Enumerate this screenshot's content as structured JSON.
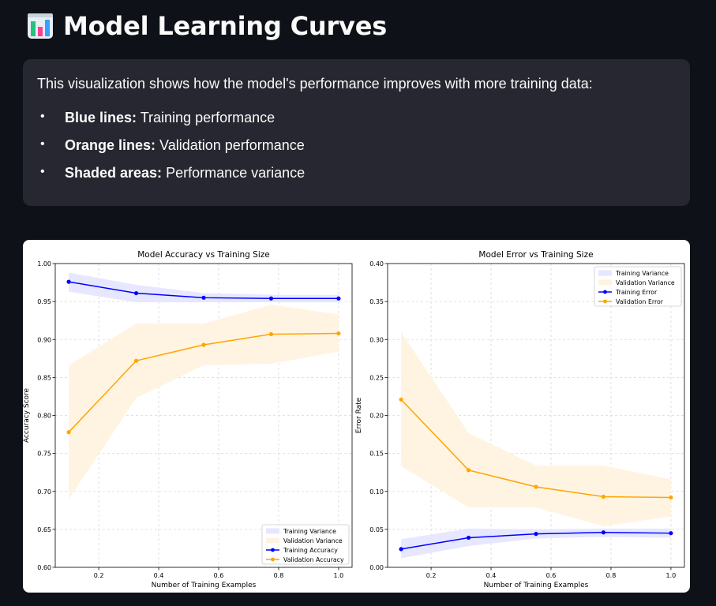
{
  "header": {
    "title": "Model Learning Curves",
    "icon": "bar-chart-icon"
  },
  "info": {
    "intro": "This visualization shows how the model's performance improves with more training data:",
    "items": [
      {
        "term": "Blue lines:",
        "desc": " Training performance"
      },
      {
        "term": "Orange lines:",
        "desc": " Validation performance"
      },
      {
        "term": "Shaded areas:",
        "desc": " Performance variance"
      }
    ]
  },
  "colors": {
    "training": "#0000ff",
    "validation": "#ffa500",
    "training_band": "#e6e6ff",
    "validation_band": "#fff3e0"
  },
  "chart_data": [
    {
      "type": "line",
      "title": "Model Accuracy vs Training Size",
      "xlabel": "Number of Training Examples",
      "ylabel": "Accuracy Score",
      "xlim": [
        0.055,
        1.045
      ],
      "ylim": [
        0.6,
        1.0
      ],
      "xticks": [
        0.2,
        0.4,
        0.6,
        0.8,
        1.0
      ],
      "xtick_labels": [
        "0.2",
        "0.4",
        "0.6",
        "0.8",
        "1.0"
      ],
      "yticks": [
        0.6,
        0.65,
        0.7,
        0.75,
        0.8,
        0.85,
        0.9,
        0.95,
        1.0
      ],
      "ytick_labels": [
        "0.60",
        "0.65",
        "0.70",
        "0.75",
        "0.80",
        "0.85",
        "0.90",
        "0.95",
        "1.00"
      ],
      "grid": true,
      "legend_position": "lower-right",
      "x": [
        0.1,
        0.325,
        0.55,
        0.775,
        1.0
      ],
      "series": [
        {
          "name": "Training Accuracy",
          "values": [
            0.976,
            0.961,
            0.955,
            0.954,
            0.954
          ],
          "color": "training"
        },
        {
          "name": "Validation Accuracy",
          "values": [
            0.778,
            0.872,
            0.893,
            0.907,
            0.908
          ],
          "color": "validation"
        }
      ],
      "bands": [
        {
          "name": "Training Variance",
          "lower": [
            0.963,
            0.949,
            0.949,
            0.949,
            0.949
          ],
          "upper": [
            0.988,
            0.972,
            0.961,
            0.959,
            0.959
          ],
          "color": "training_band"
        },
        {
          "name": "Validation Variance",
          "lower": [
            0.69,
            0.823,
            0.866,
            0.868,
            0.884
          ],
          "upper": [
            0.866,
            0.921,
            0.921,
            0.946,
            0.933
          ],
          "color": "validation_band"
        }
      ],
      "legend": [
        "Training Variance",
        "Validation Variance",
        "Training Accuracy",
        "Validation Accuracy"
      ]
    },
    {
      "type": "line",
      "title": "Model Error vs Training Size",
      "xlabel": "Number of Training Examples",
      "ylabel": "Error Rate",
      "xlim": [
        0.055,
        1.045
      ],
      "ylim": [
        0.0,
        0.4
      ],
      "xticks": [
        0.2,
        0.4,
        0.6,
        0.8,
        1.0
      ],
      "xtick_labels": [
        "0.2",
        "0.4",
        "0.6",
        "0.8",
        "1.0"
      ],
      "yticks": [
        0.0,
        0.05,
        0.1,
        0.15,
        0.2,
        0.25,
        0.3,
        0.35,
        0.4
      ],
      "ytick_labels": [
        "0.00",
        "0.05",
        "0.10",
        "0.15",
        "0.20",
        "0.25",
        "0.30",
        "0.35",
        "0.40"
      ],
      "grid": true,
      "legend_position": "upper-right",
      "x": [
        0.1,
        0.325,
        0.55,
        0.775,
        1.0
      ],
      "series": [
        {
          "name": "Training Error",
          "values": [
            0.024,
            0.039,
            0.044,
            0.046,
            0.045
          ],
          "color": "training"
        },
        {
          "name": "Validation Error",
          "values": [
            0.221,
            0.128,
            0.106,
            0.093,
            0.092
          ],
          "color": "validation"
        }
      ],
      "bands": [
        {
          "name": "Training Variance",
          "lower": [
            0.012,
            0.028,
            0.038,
            0.04,
            0.039
          ],
          "upper": [
            0.037,
            0.051,
            0.05,
            0.051,
            0.051
          ],
          "color": "training_band"
        },
        {
          "name": "Validation Variance",
          "lower": [
            0.133,
            0.079,
            0.079,
            0.054,
            0.067
          ],
          "upper": [
            0.31,
            0.177,
            0.134,
            0.134,
            0.116
          ],
          "color": "validation_band"
        }
      ],
      "legend": [
        "Training Variance",
        "Validation Variance",
        "Training Error",
        "Validation Error"
      ]
    }
  ]
}
